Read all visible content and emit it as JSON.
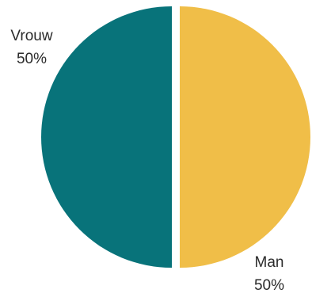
{
  "chart_data": {
    "type": "pie",
    "title": "",
    "legend": "none",
    "slices": [
      {
        "name": "Man",
        "value": 50,
        "label": "50%",
        "color": "#F0BE48"
      },
      {
        "name": "Vrouw",
        "value": 50,
        "label": "50%",
        "color": "#08737A"
      }
    ]
  }
}
